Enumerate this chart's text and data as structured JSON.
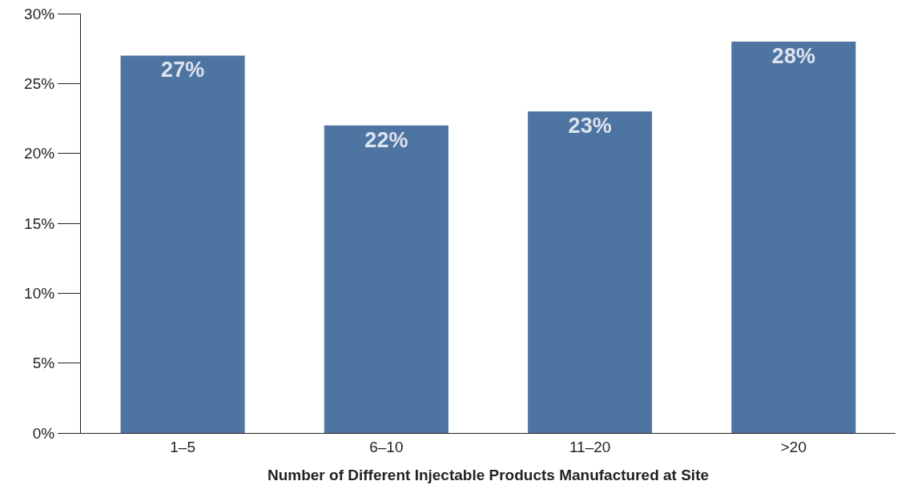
{
  "chart_data": {
    "type": "bar",
    "xlabel": "Number of Different Injectable Products Manufactured at Site",
    "categories": [
      "1–5",
      "6–10",
      "11–20",
      ">20"
    ],
    "values": [
      27,
      22,
      23,
      28
    ],
    "value_labels": [
      "27%",
      "22%",
      "23%",
      "28%"
    ],
    "color": "#4e74a2",
    "ylim": [
      0,
      30
    ],
    "yticks": [
      {
        "value": 0,
        "label": "0%"
      },
      {
        "value": 5,
        "label": "5%"
      },
      {
        "value": 10,
        "label": "10%"
      },
      {
        "value": 15,
        "label": "15%"
      },
      {
        "value": 20,
        "label": "20%"
      },
      {
        "value": 25,
        "label": "25%"
      },
      {
        "value": 30,
        "label": "30%"
      }
    ],
    "grid": false
  }
}
